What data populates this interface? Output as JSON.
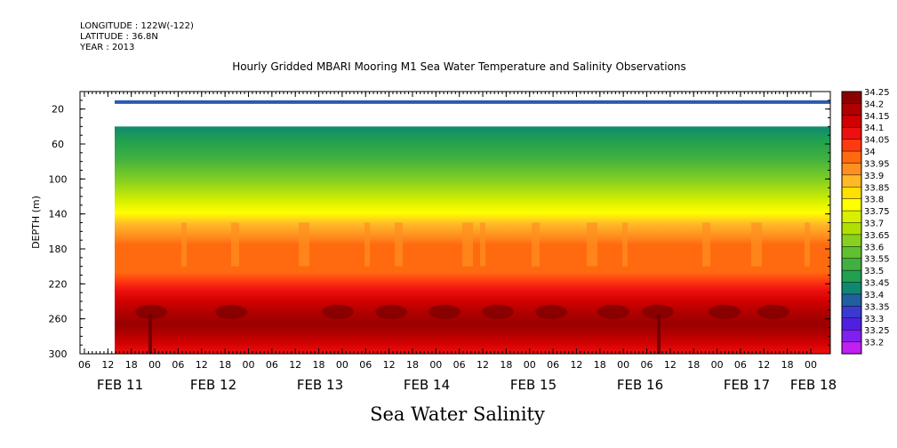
{
  "header": {
    "longitude": "LONGITUDE : 122W(-122)",
    "latitude": "LATITUDE : 36.8N",
    "year": "YEAR : 2013"
  },
  "title": "Hourly Gridded MBARI Mooring M1 Sea Water Temperature and Salinity Observations",
  "footer_title": "Sea Water Salinity",
  "chart_data": {
    "type": "heatmap",
    "title": "Hourly Gridded MBARI Mooring M1 Sea Water Temperature and Salinity Observations",
    "xlabel": "",
    "ylabel": "DEPTH (m)",
    "x_axis": {
      "hour_ticks": [
        "06",
        "12",
        "18",
        "00",
        "06",
        "12",
        "18",
        "00",
        "06",
        "12",
        "18",
        "00",
        "06",
        "12",
        "18",
        "00",
        "06",
        "12",
        "18",
        "00",
        "06",
        "12",
        "18",
        "00",
        "06",
        "12",
        "18",
        "00",
        "06",
        "12",
        "18",
        "00"
      ],
      "day_labels": [
        "FEB 11",
        "FEB 12",
        "FEB 13",
        "FEB 14",
        "FEB 15",
        "FEB 16",
        "FEB 17",
        "FEB 18"
      ]
    },
    "y_axis": {
      "range": [
        300,
        0
      ],
      "ticks": [
        20,
        60,
        100,
        140,
        180,
        220,
        260,
        300
      ],
      "inverted": true
    },
    "colorbar": {
      "levels": [
        "34.25",
        "34.2",
        "34.15",
        "34.1",
        "34.05",
        "34",
        "33.95",
        "33.9",
        "33.85",
        "33.8",
        "33.75",
        "33.7",
        "33.65",
        "33.6",
        "33.55",
        "33.5",
        "33.45",
        "33.4",
        "33.35",
        "33.3",
        "33.25",
        "33.2"
      ],
      "colors": [
        "#8b0000",
        "#b00000",
        "#d00000",
        "#ee1010",
        "#ff3a10",
        "#ff6a10",
        "#ff9020",
        "#ffb828",
        "#ffe000",
        "#ffff00",
        "#d8f000",
        "#b0e000",
        "#88d020",
        "#60c030",
        "#40b040",
        "#20a050",
        "#108870",
        "#2060a0",
        "#3a3ad0",
        "#5020e0",
        "#8020f0",
        "#c020f0"
      ]
    },
    "depth_layers": [
      {
        "depth_range": [
          10,
          14
        ],
        "salinity": "33.4"
      },
      {
        "depth_range": [
          40,
          60
        ],
        "salinity": "33.5-33.6"
      },
      {
        "depth_range": [
          60,
          100
        ],
        "salinity": "33.6-33.85"
      },
      {
        "depth_range": [
          100,
          140
        ],
        "salinity": "33.85-34.0"
      },
      {
        "depth_range": [
          140,
          205
        ],
        "salinity": "34.0-34.05"
      },
      {
        "depth_range": [
          205,
          235
        ],
        "salinity": "34.1-34.15"
      },
      {
        "depth_range": [
          235,
          280
        ],
        "salinity": "34.2-34.25"
      },
      {
        "depth_range": [
          280,
          300
        ],
        "salinity": "34.1-34.15"
      }
    ],
    "grid": false
  }
}
